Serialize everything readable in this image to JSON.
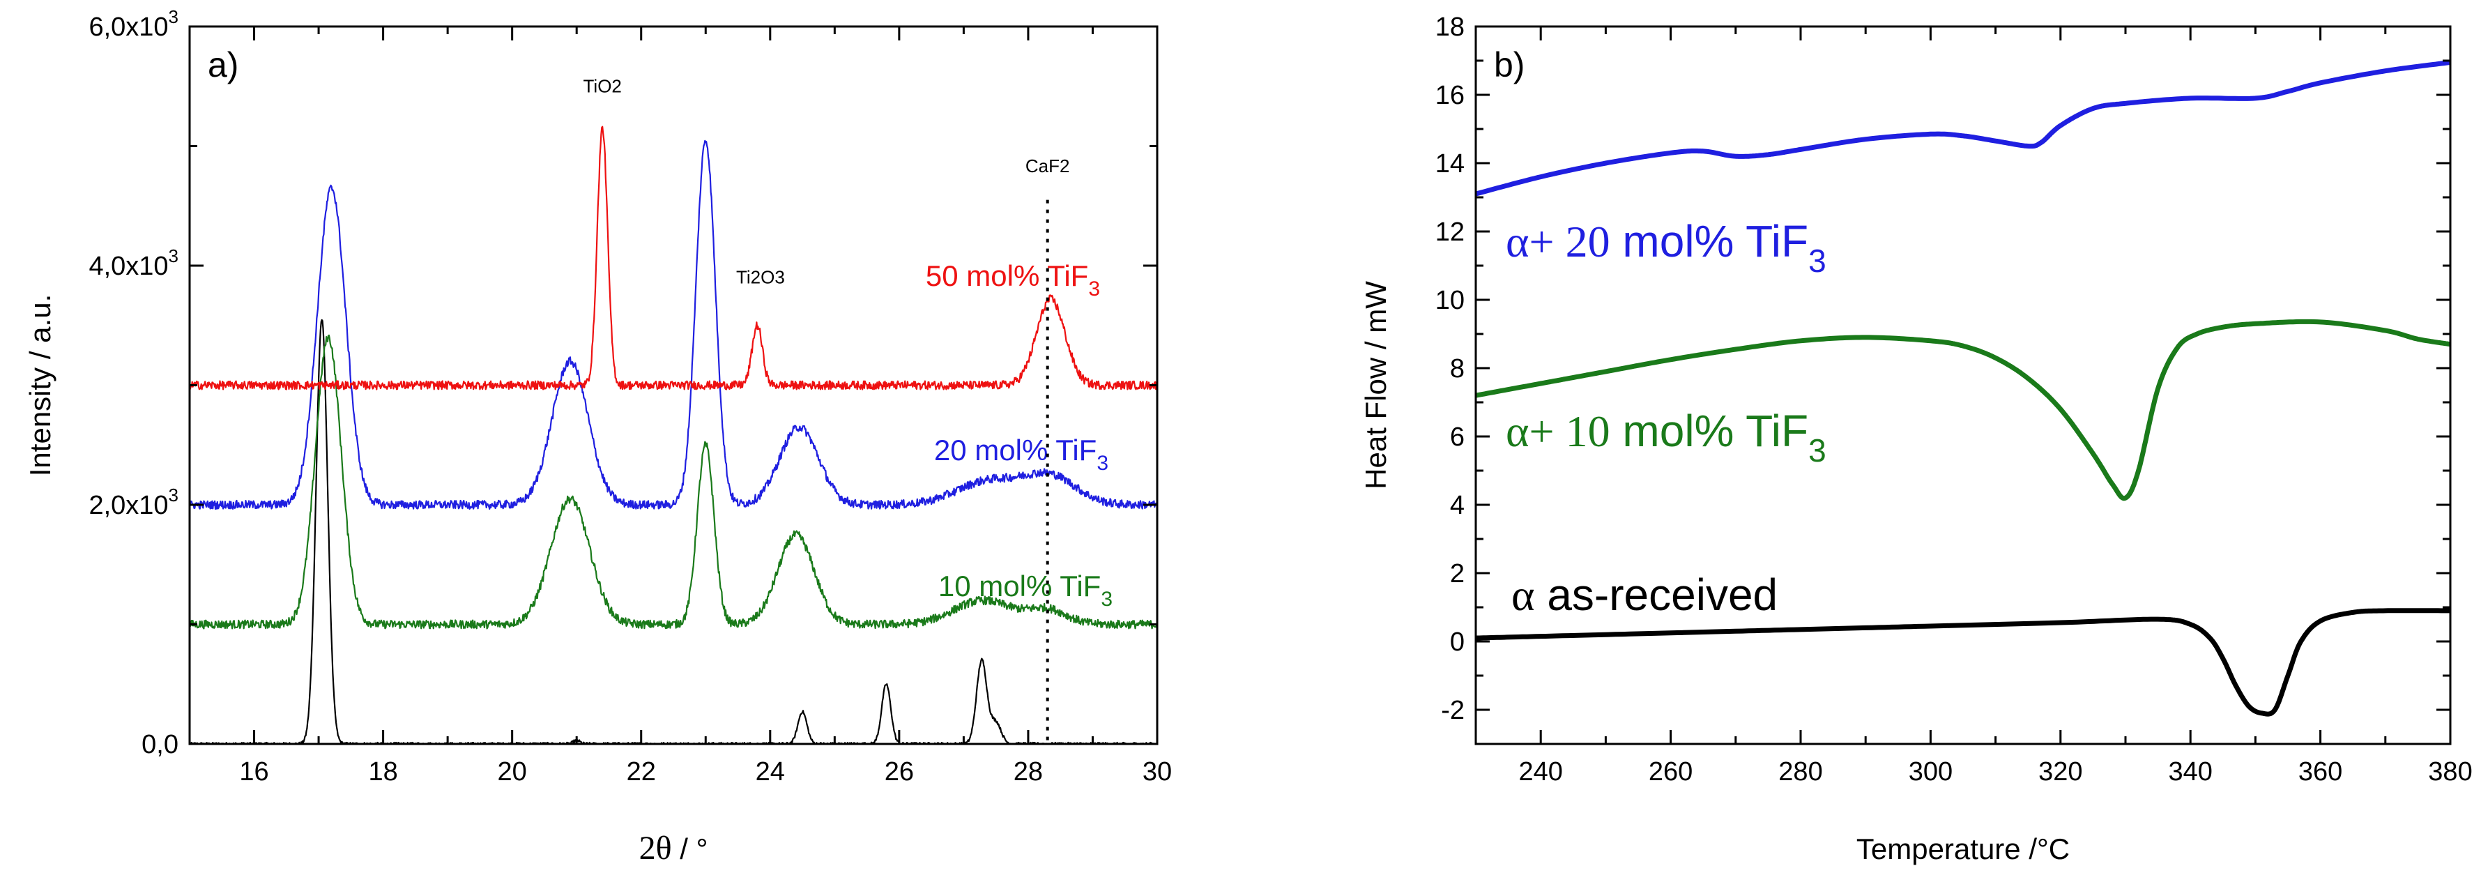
{
  "chart_data": [
    {
      "id": "a",
      "type": "line",
      "panel_label": "a)",
      "xlabel_symbol": "2θ",
      "xlabel_unit": " / °",
      "ylabel": "Intensity / a.u.",
      "xlim": [
        15,
        30
      ],
      "ylim": [
        0,
        6000
      ],
      "x_ticks": [
        16,
        18,
        20,
        22,
        24,
        26,
        28,
        30
      ],
      "x_tick_labels": [
        "16",
        "18",
        "20",
        "22",
        "24",
        "26",
        "28",
        "30"
      ],
      "y_ticks": [
        0,
        2000,
        4000,
        6000
      ],
      "y_tick_labels": [
        {
          "mantissa": "0,0",
          "exp": ""
        },
        {
          "mantissa": "2,0x10",
          "exp": "3"
        },
        {
          "mantissa": "4,0x10",
          "exp": "3"
        },
        {
          "mantissa": "6,0x10",
          "exp": "3"
        }
      ],
      "series": [
        {
          "name": "as-received",
          "color": "#000000",
          "baseline": 0,
          "noise": 12,
          "peaks": [
            [
              17.05,
              3550,
              0.09
            ],
            [
              24.5,
              270,
              0.07
            ],
            [
              25.8,
              500,
              0.07
            ],
            [
              27.28,
              700,
              0.08
            ],
            [
              27.5,
              180,
              0.08
            ],
            [
              21.0,
              30,
              0.05
            ]
          ]
        },
        {
          "name": "10 mol% TiF3",
          "color": "#1a7a1a",
          "baseline": 1000,
          "noise": 35,
          "label": {
            "text": "10 mol% TiF",
            "sub": "3"
          },
          "peaks": [
            [
              17.15,
              2400,
              0.2
            ],
            [
              20.9,
              1050,
              0.3
            ],
            [
              23.0,
              1500,
              0.13
            ],
            [
              24.4,
              750,
              0.28
            ],
            [
              27.3,
              200,
              0.45
            ],
            [
              28.3,
              120,
              0.3
            ]
          ]
        },
        {
          "name": "20 mol% TiF3",
          "color": "#1f1fe0",
          "baseline": 2000,
          "noise": 35,
          "label": {
            "text": "20 mol% TiF",
            "sub": "3"
          },
          "peaks": [
            [
              17.2,
              2650,
              0.22
            ],
            [
              20.9,
              1200,
              0.28
            ],
            [
              23.0,
              3050,
              0.15
            ],
            [
              24.45,
              650,
              0.3
            ],
            [
              27.4,
              200,
              0.5
            ],
            [
              28.35,
              230,
              0.4
            ]
          ]
        },
        {
          "name": "50 mol% TiF3",
          "color": "#ee1111",
          "baseline": 3000,
          "noise": 35,
          "label": {
            "text": "50 mol% TiF",
            "sub": "3"
          },
          "peaks": [
            [
              21.4,
              2150,
              0.08
            ],
            [
              23.8,
              500,
              0.08
            ],
            [
              28.35,
              720,
              0.22
            ]
          ]
        }
      ],
      "annotations": [
        {
          "text": "TiO2",
          "x": 21.4,
          "y": 5450
        },
        {
          "text": "Ti2O3",
          "x": 23.85,
          "y": 3850
        },
        {
          "text": "CaF2",
          "x": 28.3,
          "y": 4780
        }
      ],
      "reference_line": {
        "x": 28.3,
        "y_from": 0,
        "y_to": 4550,
        "style": "dotted"
      }
    },
    {
      "id": "b",
      "type": "line",
      "panel_label": "b)",
      "xlabel": "Temperature /°C",
      "ylabel": "Heat Flow / mW",
      "xlim": [
        230,
        380
      ],
      "ylim": [
        -3,
        18
      ],
      "x_ticks": [
        240,
        260,
        280,
        300,
        320,
        340,
        360,
        380
      ],
      "x_tick_labels": [
        "240",
        "260",
        "280",
        "300",
        "320",
        "340",
        "360",
        "380"
      ],
      "y_ticks": [
        -2,
        0,
        2,
        4,
        6,
        8,
        10,
        12,
        14,
        16,
        18
      ],
      "y_tick_labels": [
        "-2",
        "0",
        "2",
        "4",
        "6",
        "8",
        "10",
        "12",
        "14",
        "16",
        "18"
      ],
      "series": [
        {
          "name": "α as-received",
          "color": "#000000",
          "label": {
            "greek": "α",
            "text": " as-received",
            "sub": ""
          },
          "x": [
            230,
            240,
            260,
            280,
            300,
            320,
            335,
            340,
            343,
            345,
            347,
            349,
            351,
            353,
            355,
            357,
            360,
            365,
            370,
            380
          ],
          "y": [
            0.1,
            0.15,
            0.25,
            0.35,
            0.45,
            0.55,
            0.65,
            0.5,
            0.1,
            -0.5,
            -1.3,
            -1.9,
            -2.1,
            -2.0,
            -1.0,
            0.0,
            0.6,
            0.85,
            0.9,
            0.9
          ]
        },
        {
          "name": "α+ 10 mol% TiF3",
          "color": "#1a7a1a",
          "label": {
            "greek": "α+ 10",
            "text": " mol% TiF",
            "sub": "3"
          },
          "x": [
            230,
            240,
            250,
            260,
            270,
            280,
            290,
            300,
            305,
            310,
            315,
            320,
            325,
            328,
            330,
            332,
            335,
            338,
            341,
            345,
            350,
            360,
            370,
            375,
            380
          ],
          "y": [
            7.2,
            7.55,
            7.9,
            8.25,
            8.55,
            8.8,
            8.9,
            8.8,
            8.65,
            8.3,
            7.7,
            6.8,
            5.5,
            4.6,
            4.2,
            5.0,
            7.4,
            8.6,
            9.0,
            9.2,
            9.3,
            9.35,
            9.1,
            8.85,
            8.7
          ]
        },
        {
          "name": "α+ 20 mol% TiF3",
          "color": "#1f1fe0",
          "label": {
            "greek": "α+ 20",
            "text": " mol% TiF",
            "sub": "3"
          },
          "x": [
            230,
            240,
            250,
            260,
            265,
            270,
            275,
            280,
            290,
            300,
            305,
            310,
            315,
            317,
            320,
            325,
            330,
            340,
            350,
            355,
            360,
            370,
            380
          ],
          "y": [
            13.1,
            13.6,
            14.0,
            14.3,
            14.35,
            14.2,
            14.25,
            14.4,
            14.7,
            14.85,
            14.8,
            14.65,
            14.5,
            14.6,
            15.1,
            15.6,
            15.75,
            15.9,
            15.9,
            16.1,
            16.35,
            16.7,
            16.95
          ]
        }
      ]
    }
  ]
}
